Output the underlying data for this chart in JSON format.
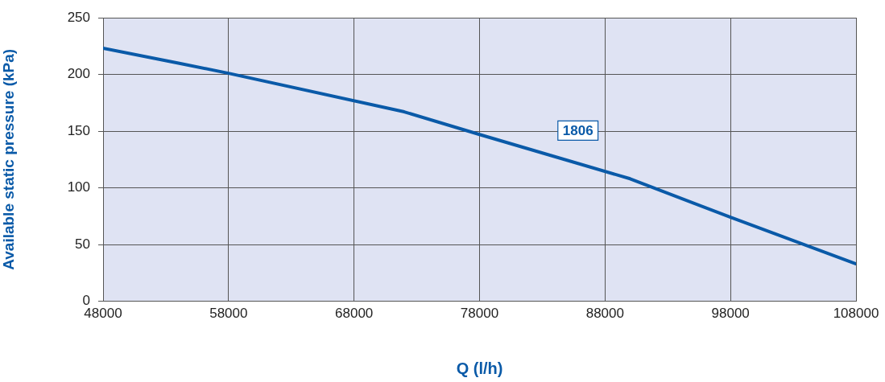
{
  "chart_data": {
    "type": "line",
    "xlabel": "Q (l/h)",
    "ylabel": "Available static pressure (kPa)",
    "series": [
      {
        "name": "1806",
        "color": "#0a5aa8",
        "x": [
          48000,
          54000,
          58000,
          72000,
          78000,
          90000,
          98000,
          108000
        ],
        "values": [
          223,
          210,
          201,
          167,
          147,
          108,
          74,
          33
        ]
      }
    ],
    "xlim": [
      48000,
      108000
    ],
    "xticks": [
      48000,
      58000,
      68000,
      78000,
      88000,
      98000,
      108000
    ],
    "ylim": [
      0,
      250
    ],
    "yticks": [
      0,
      50,
      100,
      150,
      200,
      250
    ],
    "grid": true,
    "legend": false,
    "marker": "none",
    "line_style": "solid"
  }
}
